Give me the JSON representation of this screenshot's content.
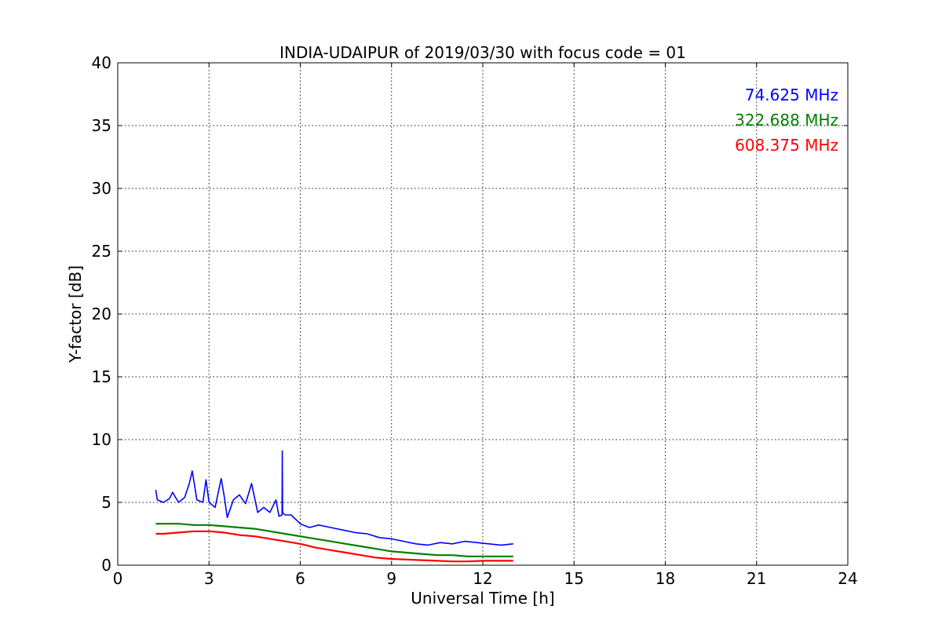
{
  "chart_data": {
    "type": "line",
    "title": "INDIA-UDAIPUR of 2019/03/30 with focus code = 01",
    "xlabel": "Universal Time [h]",
    "ylabel": "Y-factor [dB]",
    "xlim": [
      0,
      24
    ],
    "ylim": [
      0,
      40
    ],
    "xticks": [
      0,
      3,
      6,
      9,
      12,
      15,
      18,
      21,
      24
    ],
    "yticks": [
      0,
      5,
      10,
      15,
      20,
      25,
      30,
      35,
      40
    ],
    "grid": true,
    "legend_position": "top-right",
    "series": [
      {
        "name": "74.625 MHz",
        "color": "#0000ff",
        "x": [
          1.25,
          1.3,
          1.5,
          1.7,
          1.8,
          2.0,
          2.2,
          2.35,
          2.45,
          2.6,
          2.8,
          2.9,
          3.0,
          3.2,
          3.4,
          3.5,
          3.6,
          3.8,
          4.0,
          4.2,
          4.4,
          4.6,
          4.8,
          5.0,
          5.2,
          5.3,
          5.4,
          5.41,
          5.42,
          5.5,
          5.7,
          6.0,
          6.3,
          6.6,
          7.0,
          7.4,
          7.8,
          8.2,
          8.6,
          9.0,
          9.4,
          9.8,
          10.2,
          10.6,
          11.0,
          11.4,
          11.8,
          12.2,
          12.6,
          13.0
        ],
        "y": [
          6.0,
          5.2,
          5.0,
          5.3,
          5.8,
          5.0,
          5.4,
          6.5,
          7.5,
          5.2,
          5.0,
          6.8,
          5.0,
          4.6,
          6.9,
          5.5,
          3.8,
          5.2,
          5.6,
          4.9,
          6.5,
          4.2,
          4.6,
          4.2,
          5.2,
          3.9,
          4.0,
          9.1,
          4.2,
          4.0,
          4.0,
          3.3,
          3.0,
          3.2,
          3.0,
          2.8,
          2.6,
          2.5,
          2.2,
          2.1,
          1.9,
          1.7,
          1.6,
          1.8,
          1.7,
          1.9,
          1.8,
          1.7,
          1.6,
          1.7
        ]
      },
      {
        "name": "322.688 MHz",
        "color": "#008000",
        "x": [
          1.25,
          1.5,
          2.0,
          2.5,
          3.0,
          3.5,
          4.0,
          4.5,
          5.0,
          5.5,
          6.0,
          6.5,
          7.0,
          7.5,
          8.0,
          8.5,
          9.0,
          9.5,
          10.0,
          10.5,
          11.0,
          11.5,
          12.0,
          12.5,
          13.0
        ],
        "y": [
          3.3,
          3.3,
          3.3,
          3.2,
          3.2,
          3.1,
          3.0,
          2.9,
          2.7,
          2.5,
          2.3,
          2.1,
          1.9,
          1.7,
          1.5,
          1.3,
          1.1,
          1.0,
          0.9,
          0.8,
          0.8,
          0.7,
          0.7,
          0.7,
          0.7
        ]
      },
      {
        "name": "608.375 MHz",
        "color": "#ff0000",
        "x": [
          1.25,
          1.5,
          2.0,
          2.5,
          3.0,
          3.5,
          4.0,
          4.5,
          5.0,
          5.5,
          6.0,
          6.5,
          7.0,
          7.5,
          8.0,
          8.5,
          9.0,
          9.5,
          10.0,
          10.5,
          11.0,
          11.5,
          12.0,
          12.5,
          13.0
        ],
        "y": [
          2.5,
          2.5,
          2.6,
          2.7,
          2.7,
          2.6,
          2.4,
          2.3,
          2.1,
          1.9,
          1.7,
          1.4,
          1.2,
          1.0,
          0.8,
          0.6,
          0.5,
          0.45,
          0.4,
          0.35,
          0.3,
          0.3,
          0.35,
          0.35,
          0.35
        ]
      }
    ]
  }
}
